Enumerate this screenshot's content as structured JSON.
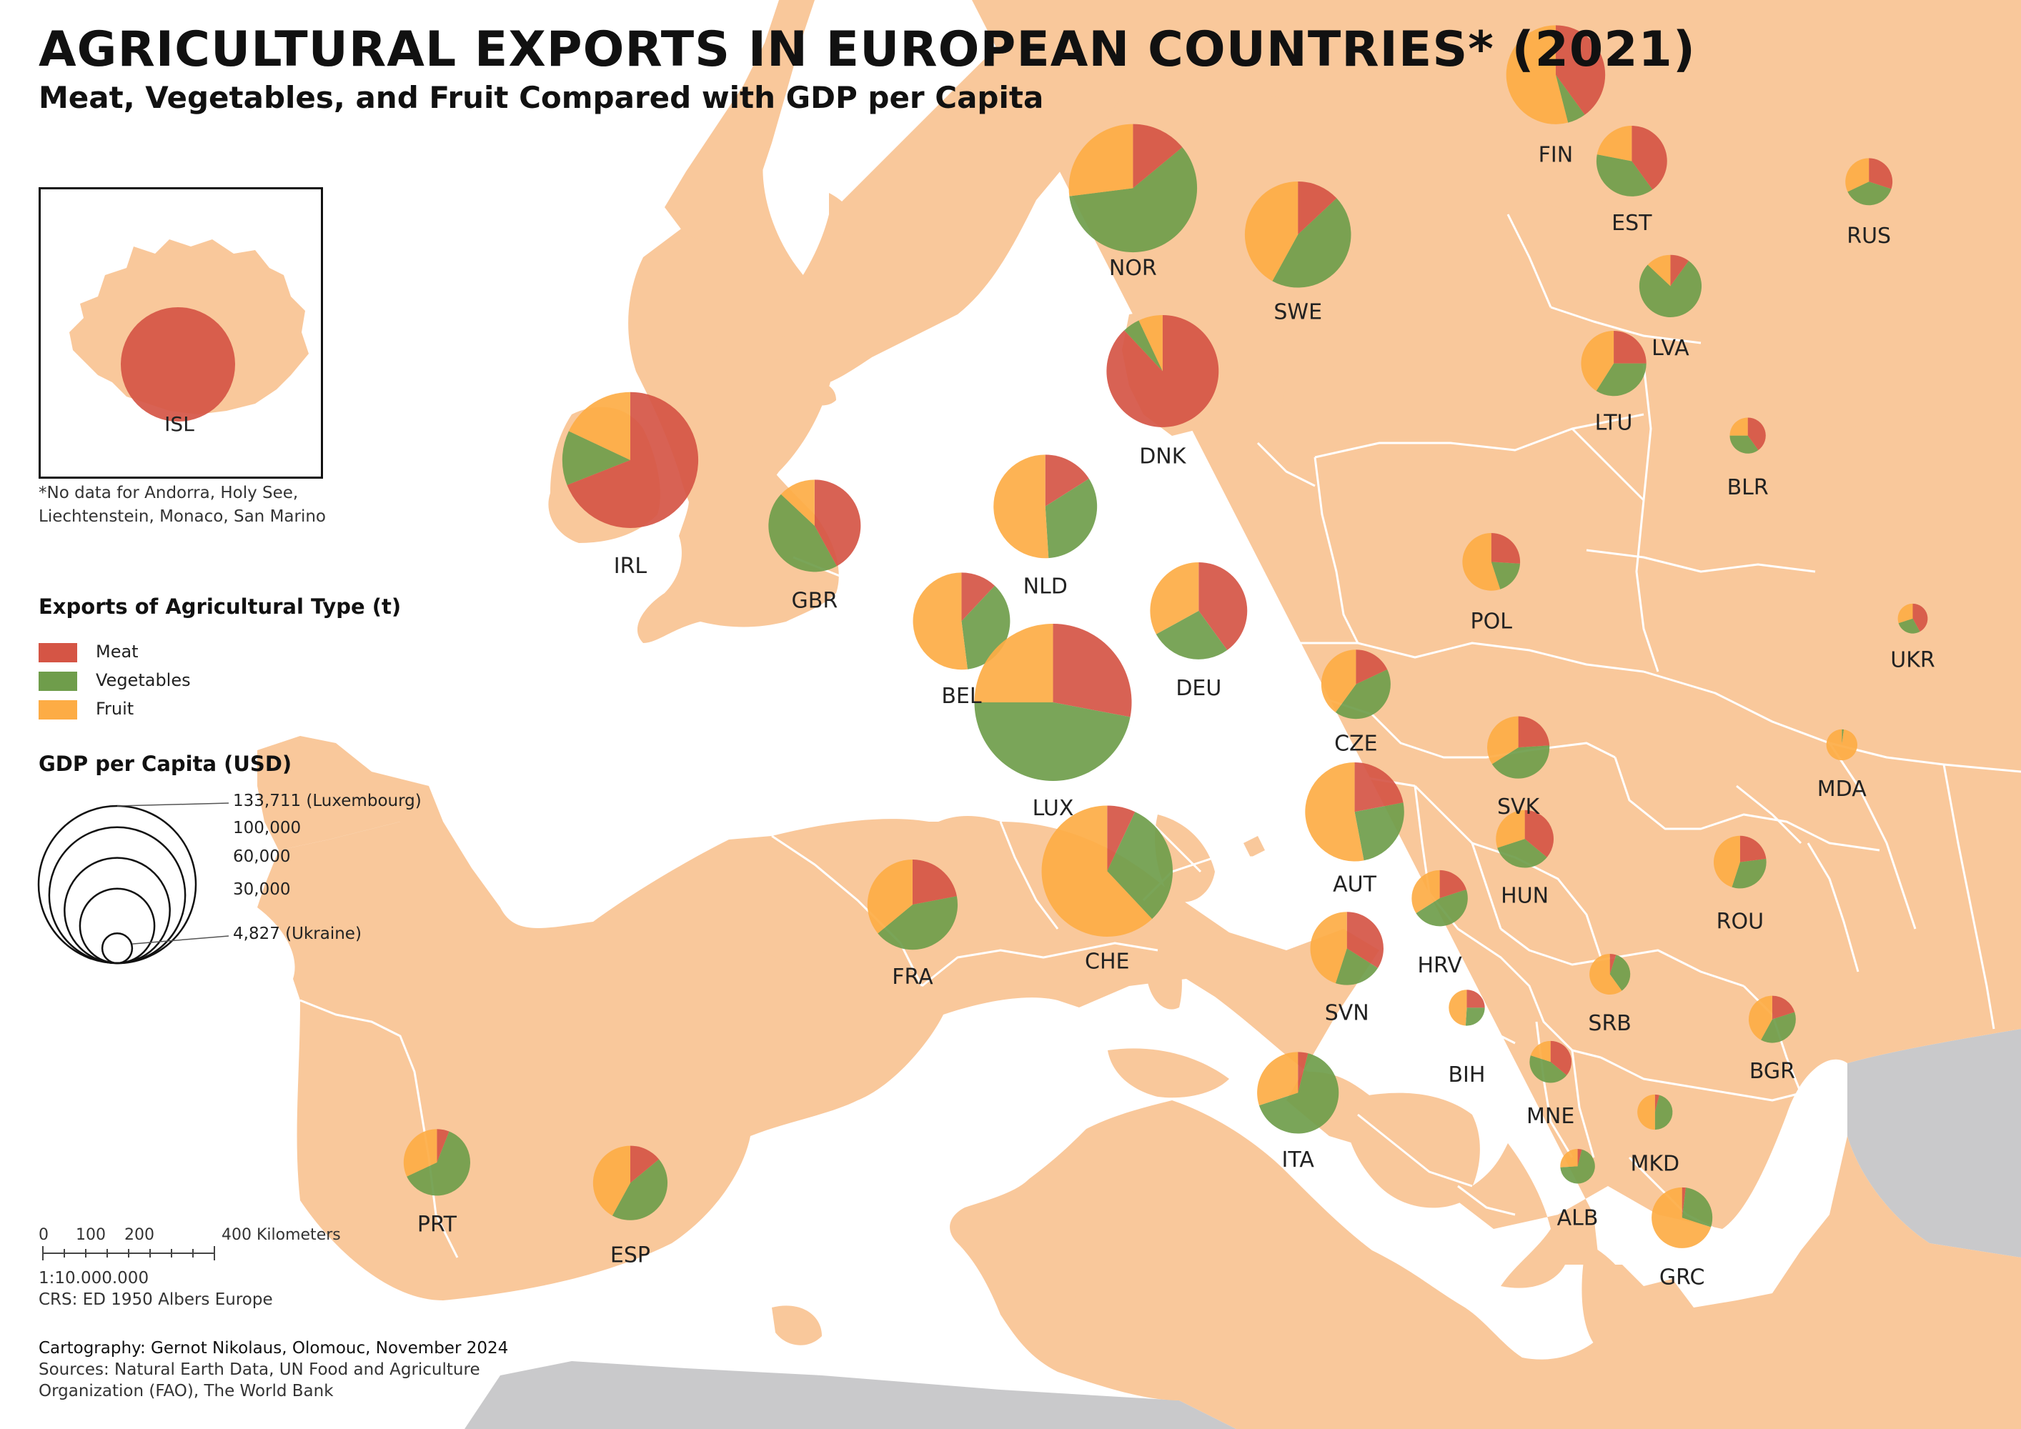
{
  "header": {
    "title": "AGRICULTURAL EXPORTS IN EUROPEAN COUNTRIES* (2021)",
    "subtitle": "Meat, Vegetables, and Fruit Compared with GDP per Capita"
  },
  "note": {
    "line1": "*No data for Andorra, Holy See,",
    "line2": "Liechtenstein, Monaco, San Marino"
  },
  "legend": {
    "type_title": "Exports of Agricultural Type (t)",
    "categories": [
      {
        "label": "Meat",
        "color": "#d55545"
      },
      {
        "label": "Vegetables",
        "color": "#6f9d4b"
      },
      {
        "label": "Fruit",
        "color": "#fdac45"
      }
    ],
    "gdp_title": "GDP per Capita (USD)",
    "gdp_sizes": [
      {
        "label": "133,711 (Luxembourg)",
        "value": 133711
      },
      {
        "label": "100,000",
        "value": 100000
      },
      {
        "label": "60,000",
        "value": 60000
      },
      {
        "label": "30,000",
        "value": 30000
      },
      {
        "label": "4,827 (Ukraine)",
        "value": 4827
      }
    ]
  },
  "scale_bar": {
    "ticks": [
      "0",
      "100",
      "200",
      "400 Kilometers"
    ],
    "ratio": "1:10.000.000",
    "crs": "CRS: ED 1950 Albers Europe"
  },
  "credits": {
    "cartography": "Cartography: Gernot Nikolaus, Olomouc, November 2024",
    "sources_line1": "Sources: Natural Earth Data, UN Food and Agriculture",
    "sources_line2": "Organization (FAO), The World Bank"
  },
  "colors": {
    "land_focus": "#f9c89b",
    "land_outside": "#c9c9cb",
    "sea": "#ffffff",
    "border": "#ffffff",
    "meat": "#d55545",
    "vegetables": "#6f9d4b",
    "fruit": "#fdac45"
  },
  "countries": [
    {
      "code": "ISL",
      "gdp": 68000,
      "meat": 1.0,
      "vegetables": 0.0,
      "fruit": 0.0
    },
    {
      "code": "IRL",
      "gdp": 100000,
      "meat": 0.69,
      "vegetables": 0.13,
      "fruit": 0.18
    },
    {
      "code": "GBR",
      "gdp": 46000,
      "meat": 0.42,
      "vegetables": 0.45,
      "fruit": 0.13
    },
    {
      "code": "NOR",
      "gdp": 89000,
      "meat": 0.14,
      "vegetables": 0.59,
      "fruit": 0.27
    },
    {
      "code": "SWE",
      "gdp": 61000,
      "meat": 0.13,
      "vegetables": 0.45,
      "fruit": 0.42
    },
    {
      "code": "FIN",
      "gdp": 53000,
      "meat": 0.4,
      "vegetables": 0.06,
      "fruit": 0.54
    },
    {
      "code": "EST",
      "gdp": 27000,
      "meat": 0.4,
      "vegetables": 0.38,
      "fruit": 0.22
    },
    {
      "code": "LVA",
      "gdp": 21000,
      "meat": 0.1,
      "vegetables": 0.77,
      "fruit": 0.13
    },
    {
      "code": "LTU",
      "gdp": 23000,
      "meat": 0.25,
      "vegetables": 0.34,
      "fruit": 0.41
    },
    {
      "code": "RUS",
      "gdp": 12000,
      "meat": 0.3,
      "vegetables": 0.38,
      "fruit": 0.32
    },
    {
      "code": "BLR",
      "gdp": 7000,
      "meat": 0.4,
      "vegetables": 0.35,
      "fruit": 0.25
    },
    {
      "code": "UKR",
      "gdp": 4827,
      "meat": 0.42,
      "vegetables": 0.28,
      "fruit": 0.3
    },
    {
      "code": "DNK",
      "gdp": 68000,
      "meat": 0.88,
      "vegetables": 0.05,
      "fruit": 0.07
    },
    {
      "code": "NLD",
      "gdp": 58000,
      "meat": 0.16,
      "vegetables": 0.33,
      "fruit": 0.51
    },
    {
      "code": "BEL",
      "gdp": 51000,
      "meat": 0.12,
      "vegetables": 0.36,
      "fruit": 0.52
    },
    {
      "code": "LUX",
      "gdp": 133711,
      "meat": 0.28,
      "vegetables": 0.47,
      "fruit": 0.25
    },
    {
      "code": "DEU",
      "gdp": 51000,
      "meat": 0.4,
      "vegetables": 0.27,
      "fruit": 0.33
    },
    {
      "code": "POL",
      "gdp": 18000,
      "meat": 0.26,
      "vegetables": 0.19,
      "fruit": 0.55
    },
    {
      "code": "CZE",
      "gdp": 26000,
      "meat": 0.18,
      "vegetables": 0.42,
      "fruit": 0.4
    },
    {
      "code": "SVK",
      "gdp": 21000,
      "meat": 0.24,
      "vegetables": 0.42,
      "fruit": 0.34
    },
    {
      "code": "AUT",
      "gdp": 53000,
      "meat": 0.22,
      "vegetables": 0.25,
      "fruit": 0.53
    },
    {
      "code": "HUN",
      "gdp": 18000,
      "meat": 0.36,
      "vegetables": 0.34,
      "fruit": 0.3
    },
    {
      "code": "CHE",
      "gdp": 93000,
      "meat": 0.07,
      "vegetables": 0.31,
      "fruit": 0.62
    },
    {
      "code": "FRA",
      "gdp": 44000,
      "meat": 0.22,
      "vegetables": 0.42,
      "fruit": 0.36
    },
    {
      "code": "ITA",
      "gdp": 36000,
      "meat": 0.04,
      "vegetables": 0.66,
      "fruit": 0.3
    },
    {
      "code": "SVN",
      "gdp": 29000,
      "meat": 0.34,
      "vegetables": 0.21,
      "fruit": 0.45
    },
    {
      "code": "HRV",
      "gdp": 17000,
      "meat": 0.2,
      "vegetables": 0.46,
      "fruit": 0.34
    },
    {
      "code": "BIH",
      "gdp": 7000,
      "meat": 0.25,
      "vegetables": 0.26,
      "fruit": 0.49
    },
    {
      "code": "SRB",
      "gdp": 9000,
      "meat": 0.05,
      "vegetables": 0.35,
      "fruit": 0.6
    },
    {
      "code": "MNE",
      "gdp": 9500,
      "meat": 0.36,
      "vegetables": 0.44,
      "fruit": 0.2
    },
    {
      "code": "ALB",
      "gdp": 6500,
      "meat": 0.04,
      "vegetables": 0.7,
      "fruit": 0.26
    },
    {
      "code": "MKD",
      "gdp": 6700,
      "meat": 0.04,
      "vegetables": 0.46,
      "fruit": 0.5
    },
    {
      "code": "ROU",
      "gdp": 15000,
      "meat": 0.23,
      "vegetables": 0.32,
      "fruit": 0.45
    },
    {
      "code": "BGR",
      "gdp": 12000,
      "meat": 0.2,
      "vegetables": 0.38,
      "fruit": 0.42
    },
    {
      "code": "MDA",
      "gdp": 5200,
      "meat": 0.0,
      "vegetables": 0.02,
      "fruit": 0.98
    },
    {
      "code": "GRC",
      "gdp": 20000,
      "meat": 0.02,
      "vegetables": 0.28,
      "fruit": 0.7
    },
    {
      "code": "PRT",
      "gdp": 24000,
      "meat": 0.06,
      "vegetables": 0.62,
      "fruit": 0.32
    },
    {
      "code": "ESP",
      "gdp": 30000,
      "meat": 0.14,
      "vegetables": 0.44,
      "fruit": 0.42
    }
  ]
}
